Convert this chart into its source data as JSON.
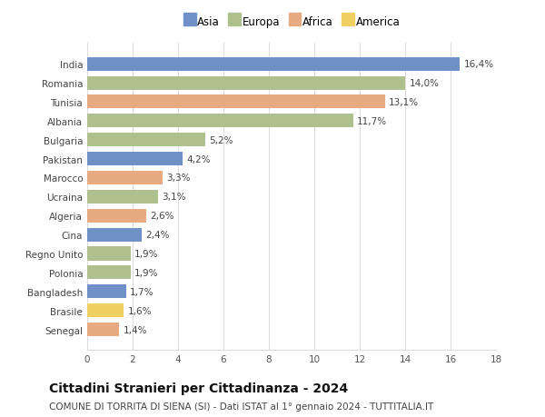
{
  "categories": [
    "India",
    "Romania",
    "Tunisia",
    "Albania",
    "Bulgaria",
    "Pakistan",
    "Marocco",
    "Ucraina",
    "Algeria",
    "Cina",
    "Regno Unito",
    "Polonia",
    "Bangladesh",
    "Brasile",
    "Senegal"
  ],
  "values": [
    16.4,
    14.0,
    13.1,
    11.7,
    5.2,
    4.2,
    3.3,
    3.1,
    2.6,
    2.4,
    1.9,
    1.9,
    1.7,
    1.6,
    1.4
  ],
  "labels": [
    "16,4%",
    "14,0%",
    "13,1%",
    "11,7%",
    "5,2%",
    "4,2%",
    "3,3%",
    "3,1%",
    "2,6%",
    "2,4%",
    "1,9%",
    "1,9%",
    "1,7%",
    "1,6%",
    "1,4%"
  ],
  "continents": [
    "Asia",
    "Europa",
    "Africa",
    "Europa",
    "Europa",
    "Asia",
    "Africa",
    "Europa",
    "Africa",
    "Asia",
    "Europa",
    "Europa",
    "Asia",
    "America",
    "Africa"
  ],
  "continent_colors": {
    "Asia": "#7090c8",
    "Europa": "#adc08e",
    "Africa": "#e8aa80",
    "America": "#f0d060"
  },
  "legend_order": [
    "Asia",
    "Europa",
    "Africa",
    "America"
  ],
  "title": "Cittadini Stranieri per Cittadinanza - 2024",
  "subtitle": "COMUNE DI TORRITA DI SIENA (SI) - Dati ISTAT al 1° gennaio 2024 - TUTTITALIA.IT",
  "xlim": [
    0,
    18
  ],
  "xticks": [
    0,
    2,
    4,
    6,
    8,
    10,
    12,
    14,
    16,
    18
  ],
  "background_color": "#ffffff",
  "grid_color": "#dddddd",
  "bar_height": 0.72,
  "label_fontsize": 7.5,
  "title_fontsize": 10,
  "subtitle_fontsize": 7.5,
  "axis_label_fontsize": 7.5,
  "legend_fontsize": 8.5
}
